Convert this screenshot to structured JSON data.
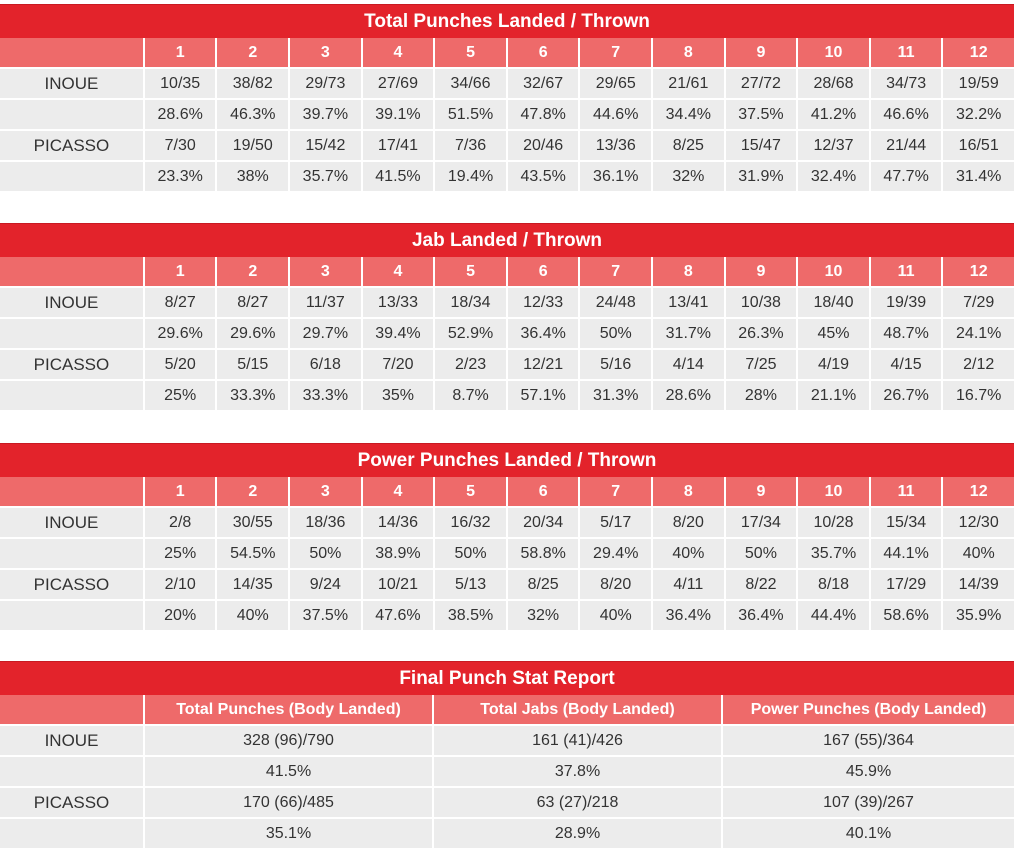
{
  "tables": [
    {
      "title": "Total Punches Landed / Thrown",
      "rounds": [
        "1",
        "2",
        "3",
        "4",
        "5",
        "6",
        "7",
        "8",
        "9",
        "10",
        "11",
        "12"
      ],
      "fighters": [
        {
          "name": "INOUE",
          "landed": [
            "10/35",
            "38/82",
            "29/73",
            "27/69",
            "34/66",
            "32/67",
            "29/65",
            "21/61",
            "27/72",
            "28/68",
            "34/73",
            "19/59"
          ],
          "pct": [
            "28.6%",
            "46.3%",
            "39.7%",
            "39.1%",
            "51.5%",
            "47.8%",
            "44.6%",
            "34.4%",
            "37.5%",
            "41.2%",
            "46.6%",
            "32.2%"
          ]
        },
        {
          "name": "PICASSO",
          "landed": [
            "7/30",
            "19/50",
            "15/42",
            "17/41",
            "7/36",
            "20/46",
            "13/36",
            "8/25",
            "15/47",
            "12/37",
            "21/44",
            "16/51"
          ],
          "pct": [
            "23.3%",
            "38%",
            "35.7%",
            "41.5%",
            "19.4%",
            "43.5%",
            "36.1%",
            "32%",
            "31.9%",
            "32.4%",
            "47.7%",
            "31.4%"
          ]
        }
      ]
    },
    {
      "title": "Jab Landed / Thrown",
      "rounds": [
        "1",
        "2",
        "3",
        "4",
        "5",
        "6",
        "7",
        "8",
        "9",
        "10",
        "11",
        "12"
      ],
      "fighters": [
        {
          "name": "INOUE",
          "landed": [
            "8/27",
            "8/27",
            "11/37",
            "13/33",
            "18/34",
            "12/33",
            "24/48",
            "13/41",
            "10/38",
            "18/40",
            "19/39",
            "7/29"
          ],
          "pct": [
            "29.6%",
            "29.6%",
            "29.7%",
            "39.4%",
            "52.9%",
            "36.4%",
            "50%",
            "31.7%",
            "26.3%",
            "45%",
            "48.7%",
            "24.1%"
          ]
        },
        {
          "name": "PICASSO",
          "landed": [
            "5/20",
            "5/15",
            "6/18",
            "7/20",
            "2/23",
            "12/21",
            "5/16",
            "4/14",
            "7/25",
            "4/19",
            "4/15",
            "2/12"
          ],
          "pct": [
            "25%",
            "33.3%",
            "33.3%",
            "35%",
            "8.7%",
            "57.1%",
            "31.3%",
            "28.6%",
            "28%",
            "21.1%",
            "26.7%",
            "16.7%"
          ]
        }
      ]
    },
    {
      "title": "Power Punches Landed / Thrown",
      "rounds": [
        "1",
        "2",
        "3",
        "4",
        "5",
        "6",
        "7",
        "8",
        "9",
        "10",
        "11",
        "12"
      ],
      "fighters": [
        {
          "name": "INOUE",
          "landed": [
            "2/8",
            "30/55",
            "18/36",
            "14/36",
            "16/32",
            "20/34",
            "5/17",
            "8/20",
            "17/34",
            "10/28",
            "15/34",
            "12/30"
          ],
          "pct": [
            "25%",
            "54.5%",
            "50%",
            "38.9%",
            "50%",
            "58.8%",
            "29.4%",
            "40%",
            "50%",
            "35.7%",
            "44.1%",
            "40%"
          ]
        },
        {
          "name": "PICASSO",
          "landed": [
            "2/10",
            "14/35",
            "9/24",
            "10/21",
            "5/13",
            "8/25",
            "8/20",
            "4/11",
            "8/22",
            "8/18",
            "17/29",
            "14/39"
          ],
          "pct": [
            "20%",
            "40%",
            "37.5%",
            "47.6%",
            "38.5%",
            "32%",
            "40%",
            "36.4%",
            "36.4%",
            "44.4%",
            "58.6%",
            "35.9%"
          ]
        }
      ]
    }
  ],
  "final": {
    "title": "Final Punch Stat Report",
    "columns": [
      "Total Punches (Body Landed)",
      "Total Jabs (Body Landed)",
      "Power Punches (Body Landed)"
    ],
    "fighters": [
      {
        "name": "INOUE",
        "landed": [
          "328 (96)/790",
          "161 (41)/426",
          "167 (55)/364"
        ],
        "pct": [
          "41.5%",
          "37.8%",
          "45.9%"
        ]
      },
      {
        "name": "PICASSO",
        "landed": [
          "170 (66)/485",
          "63 (27)/218",
          "107 (39)/267"
        ],
        "pct": [
          "35.1%",
          "28.9%",
          "40.1%"
        ]
      }
    ]
  },
  "colors": {
    "title_bg": "#e3232b",
    "header_bg": "#ee6a6a",
    "cell_bg": "#ececec"
  }
}
